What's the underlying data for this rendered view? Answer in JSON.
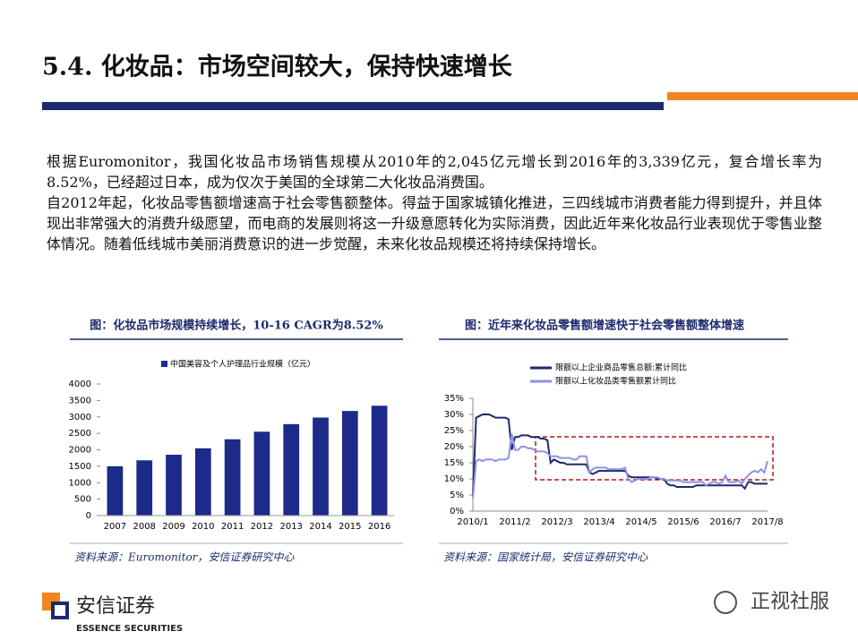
{
  "header": {
    "title": "5.4. 化妆品：市场空间较大，保持快速增长"
  },
  "body": {
    "paragraphs": [
      "根据Euromonitor，我国化妆品市场销售规模从2010年的2,045亿元增长到2016年的3,339亿元，复合增长率为8.52%，已经超过日本，成为仅次于美国的全球第二大化妆品消费国。",
      "自2012年起，化妆品零售额增速高于社会零售额整体。得益于国家城镇化推进，三四线城市消费者能力得到提升，并且体现出非常强大的消费升级愿望，而电商的发展则将这一升级意愿转化为实际消费，因此近年来化妆品行业表现优于零售业整体情况。随着低线城市美丽消费意识的进一步觉醒，未来化妆品规模还将持续保持增长。"
    ]
  },
  "chart_data": [
    {
      "type": "bar",
      "title": "图：化妆品市场规模持续增长，10-16 CAGR为8.52%",
      "source": "资料来源：Euromonitor，安信证券研究中心",
      "categories": [
        "2007",
        "2008",
        "2009",
        "2010",
        "2011",
        "2012",
        "2013",
        "2014",
        "2015",
        "2016"
      ],
      "series": [
        {
          "name": "中国美容及个人护理品行业规模（亿元）",
          "color": "#1c2a8a",
          "values": [
            1500,
            1680,
            1850,
            2045,
            2320,
            2550,
            2780,
            2980,
            3180,
            3339
          ]
        }
      ],
      "ylim": [
        0,
        4000
      ],
      "yticks": [
        0,
        500,
        1000,
        1500,
        2000,
        2500,
        3000,
        3500,
        4000
      ]
    },
    {
      "type": "line",
      "title": "图：近年来化妆品零售额增速快于社会零售额整体增速",
      "source": "资料来源：国家统计局，安信证券研究中心",
      "categories": [
        "2010/1",
        null,
        null,
        null,
        null,
        null,
        null,
        null,
        null,
        null,
        null,
        null,
        null,
        "2011/2",
        null,
        null,
        null,
        null,
        null,
        null,
        null,
        null,
        null,
        null,
        null,
        null,
        "2012/3",
        null,
        null,
        null,
        null,
        null,
        null,
        null,
        null,
        null,
        null,
        null,
        null,
        "2013/4",
        null,
        null,
        null,
        null,
        null,
        null,
        null,
        null,
        null,
        null,
        null,
        null,
        "2014/5",
        null,
        null,
        null,
        null,
        null,
        null,
        null,
        null,
        null,
        null,
        null,
        null,
        "2015/6",
        null,
        null,
        null,
        null,
        null,
        null,
        null,
        null,
        null,
        null,
        null,
        null,
        "2016/7",
        null,
        null,
        null,
        null,
        null,
        null,
        null,
        null,
        null,
        null,
        null,
        null,
        "2017/8"
      ],
      "series": [
        {
          "name": "限额以上企业商品零售总额:累计同比",
          "color": "#1c2a6e",
          "values": [
            5,
            29,
            29.5,
            30,
            30,
            30,
            29.5,
            29,
            29,
            29,
            29,
            28.5,
            19,
            23,
            23,
            23.5,
            23.5,
            23.5,
            23,
            23,
            23,
            22.5,
            22.5,
            22,
            15,
            16,
            15.5,
            15,
            15,
            14.5,
            14.5,
            14.5,
            14.5,
            14.5,
            14.5,
            14.5,
            12,
            11.5,
            12,
            12.5,
            12.5,
            12.5,
            12.5,
            12.5,
            12.5,
            12.5,
            12.5,
            12.5,
            11,
            10.5,
            10.5,
            10.5,
            10.5,
            10.5,
            10.5,
            10.5,
            10.5,
            10,
            10,
            10,
            8.5,
            8,
            8,
            7.5,
            7.5,
            7.5,
            7.5,
            7.5,
            7.5,
            8,
            8,
            8,
            8,
            8,
            8,
            8,
            8,
            8,
            8,
            8,
            8,
            8,
            8,
            8,
            7,
            9,
            9,
            8.5,
            8.5,
            8.5,
            8.5,
            8.5
          ]
        },
        {
          "name": "限额以上化妆品类零售额累计同比",
          "color": "#8f92e0",
          "values": [
            4,
            15.5,
            16,
            15.5,
            16,
            16,
            16,
            15.5,
            16,
            16,
            16,
            16.5,
            24,
            19,
            19,
            20,
            20,
            19.5,
            19.5,
            19,
            18.5,
            18.5,
            18.5,
            18,
            17,
            17,
            17,
            16.5,
            16.5,
            16.5,
            16.5,
            16,
            16,
            17,
            17,
            17,
            12,
            13,
            13.5,
            13.5,
            13.5,
            13.5,
            13,
            13,
            13,
            13,
            13,
            13.5,
            10,
            9,
            9.5,
            10,
            10,
            10,
            10,
            10.5,
            10.5,
            10.5,
            10,
            10,
            9.5,
            9.5,
            9.5,
            9.5,
            9.5,
            9,
            9,
            9,
            9,
            9,
            9,
            9,
            8,
            8.5,
            9,
            9,
            8.5,
            9,
            11,
            9,
            9,
            9,
            9.5,
            8.5,
            10,
            11,
            12,
            12.5,
            12,
            13,
            12,
            15.5
          ]
        }
      ],
      "ylim": [
        0,
        35
      ],
      "yticks": [
        {
          "value": 0,
          "label": "0%"
        },
        {
          "value": 5,
          "label": "5%"
        },
        {
          "value": 10,
          "label": "10%"
        },
        {
          "value": 15,
          "label": "15%"
        },
        {
          "value": 20,
          "label": "20%"
        },
        {
          "value": 25,
          "label": "25%"
        },
        {
          "value": 30,
          "label": "30%"
        },
        {
          "value": 35,
          "label": "35%"
        }
      ]
    }
  ],
  "footer": {
    "company_cn": "安信证券",
    "company_en": "ESSENCE SECURITIES",
    "watermark": "正视社服"
  }
}
